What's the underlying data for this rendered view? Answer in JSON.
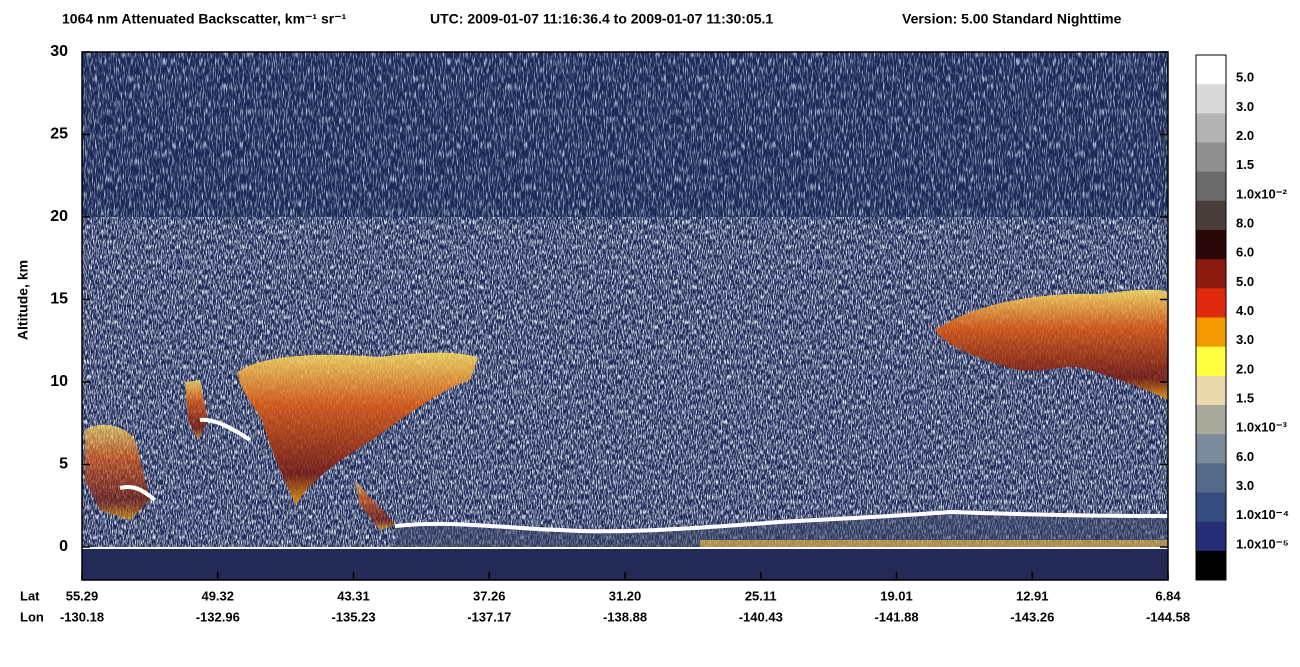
{
  "chart_data": {
    "type": "heatmap",
    "title": "1064 nm Attenuated Backscatter, km⁻¹ sr⁻¹",
    "time_range": "UTC:  2009-01-07 11:16:36.4  to  2009-01-07 11:30:05.1",
    "version": "Version: 5.00  Standard  Nighttime",
    "y_label": "Altitude, km",
    "ylim": [
      -2,
      30
    ],
    "yticks": [
      0,
      5,
      10,
      15,
      20,
      25,
      30
    ],
    "x_row_labels": [
      "Lat",
      "Lon"
    ],
    "lat_labels": [
      "55.29",
      "49.32",
      "43.31",
      "37.26",
      "31.20",
      "25.11",
      "19.01",
      "12.91",
      "6.84"
    ],
    "lon_labels": [
      "-130.18",
      "-132.96",
      "-135.23",
      "-137.17",
      "-138.88",
      "-140.43",
      "-141.88",
      "-143.26",
      "-144.58"
    ],
    "colorbar": {
      "colors": [
        "#ffffff",
        "#d9d9d9",
        "#b3b3b3",
        "#8f8f8f",
        "#6b6b6b",
        "#4a3e3a",
        "#2b0606",
        "#8a1a12",
        "#e02a10",
        "#f29a00",
        "#ffff40",
        "#ead9ac",
        "#a9aa9c",
        "#7c8b9b",
        "#55698a",
        "#364c80",
        "#262e78",
        "#000000"
      ],
      "labels": [
        "5.0",
        "3.0",
        "2.0",
        "1.5",
        "1.0x10⁻²",
        "8.0",
        "6.0",
        "5.0",
        "4.0",
        "3.0",
        "2.0",
        "1.5",
        "1.0x10⁻³",
        "6.0",
        "3.0",
        "1.0x10⁻⁴",
        "1.0x10⁻⁵"
      ]
    }
  }
}
